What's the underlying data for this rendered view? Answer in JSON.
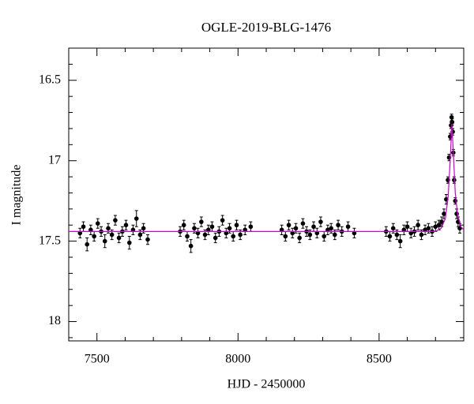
{
  "chart_data": {
    "type": "scatter",
    "title": "OGLE-2019-BLG-1476",
    "xlabel": "HJD - 2450000",
    "ylabel": "I magnitude",
    "xlim": [
      7400,
      8800
    ],
    "ylim": [
      16.3,
      18.12
    ],
    "y_inverted": true,
    "xticks": [
      7500,
      8000,
      8500
    ],
    "yticks": [
      16.5,
      17,
      17.5,
      18
    ],
    "xminorticks": [
      7600,
      7700,
      7800,
      7900,
      8100,
      8200,
      8300,
      8400,
      8600,
      8700
    ],
    "yminorticks": [
      16.4,
      16.6,
      16.7,
      16.8,
      16.9,
      17.1,
      17.2,
      17.3,
      17.4,
      17.6,
      17.7,
      17.8,
      17.9,
      18.1
    ],
    "color": "#000000",
    "x": [
      7440,
      7452,
      7465,
      7478,
      7490,
      7503,
      7515,
      7528,
      7540,
      7553,
      7565,
      7578,
      7590,
      7603,
      7615,
      7628,
      7640,
      7653,
      7665,
      7680,
      7795,
      7808,
      7820,
      7833,
      7845,
      7858,
      7870,
      7883,
      7895,
      7908,
      7920,
      7933,
      7945,
      7958,
      7970,
      7983,
      7995,
      8008,
      8025,
      8045,
      8155,
      8168,
      8180,
      8193,
      8205,
      8218,
      8230,
      8243,
      8255,
      8268,
      8280,
      8293,
      8305,
      8318,
      8330,
      8343,
      8355,
      8368,
      8390,
      8412,
      8525,
      8538,
      8550,
      8563,
      8575,
      8588,
      8600,
      8613,
      8625,
      8638,
      8650,
      8663,
      8675,
      8688,
      8700,
      8712,
      8722,
      8730,
      8738,
      8744,
      8748,
      8752,
      8755,
      8757,
      8759,
      8761,
      8763,
      8766,
      8770,
      8775,
      8780,
      8786
    ],
    "values": [
      17.45,
      17.41,
      17.52,
      17.43,
      17.47,
      17.39,
      17.44,
      17.5,
      17.42,
      17.46,
      17.37,
      17.48,
      17.44,
      17.4,
      17.51,
      17.43,
      17.36,
      17.46,
      17.42,
      17.49,
      17.44,
      17.4,
      17.47,
      17.53,
      17.42,
      17.45,
      17.38,
      17.46,
      17.43,
      17.41,
      17.48,
      17.44,
      17.37,
      17.45,
      17.42,
      17.47,
      17.4,
      17.46,
      17.43,
      17.41,
      17.43,
      17.47,
      17.4,
      17.45,
      17.42,
      17.48,
      17.39,
      17.44,
      17.46,
      17.41,
      17.45,
      17.38,
      17.47,
      17.43,
      17.42,
      17.46,
      17.4,
      17.44,
      17.41,
      17.45,
      17.44,
      17.47,
      17.42,
      17.46,
      17.5,
      17.43,
      17.41,
      17.45,
      17.44,
      17.4,
      17.46,
      17.43,
      17.42,
      17.44,
      17.41,
      17.4,
      17.38,
      17.33,
      17.24,
      17.12,
      16.98,
      16.85,
      16.78,
      16.73,
      16.76,
      16.82,
      16.95,
      17.12,
      17.25,
      17.33,
      17.38,
      17.42
    ],
    "errors": [
      0.03,
      0.03,
      0.04,
      0.03,
      0.03,
      0.03,
      0.03,
      0.04,
      0.03,
      0.03,
      0.03,
      0.03,
      0.03,
      0.03,
      0.04,
      0.03,
      0.05,
      0.03,
      0.03,
      0.03,
      0.03,
      0.03,
      0.03,
      0.04,
      0.03,
      0.03,
      0.03,
      0.03,
      0.03,
      0.03,
      0.03,
      0.03,
      0.03,
      0.03,
      0.03,
      0.03,
      0.03,
      0.03,
      0.03,
      0.03,
      0.03,
      0.03,
      0.03,
      0.03,
      0.03,
      0.03,
      0.03,
      0.03,
      0.03,
      0.03,
      0.03,
      0.03,
      0.03,
      0.03,
      0.03,
      0.03,
      0.03,
      0.03,
      0.03,
      0.03,
      0.03,
      0.03,
      0.03,
      0.03,
      0.04,
      0.03,
      0.03,
      0.03,
      0.03,
      0.03,
      0.03,
      0.03,
      0.03,
      0.03,
      0.03,
      0.03,
      0.03,
      0.03,
      0.03,
      0.02,
      0.02,
      0.02,
      0.02,
      0.02,
      0.02,
      0.02,
      0.02,
      0.02,
      0.02,
      0.03,
      0.03,
      0.03
    ],
    "model": {
      "color": "#cc00cc",
      "x": [
        7400,
        8700,
        8720,
        8735,
        8745,
        8752,
        8758,
        8764,
        8770,
        8778,
        8790,
        8800
      ],
      "values": [
        17.44,
        17.44,
        17.42,
        17.36,
        17.22,
        17.0,
        16.77,
        16.98,
        17.2,
        17.33,
        17.41,
        17.43
      ]
    }
  }
}
